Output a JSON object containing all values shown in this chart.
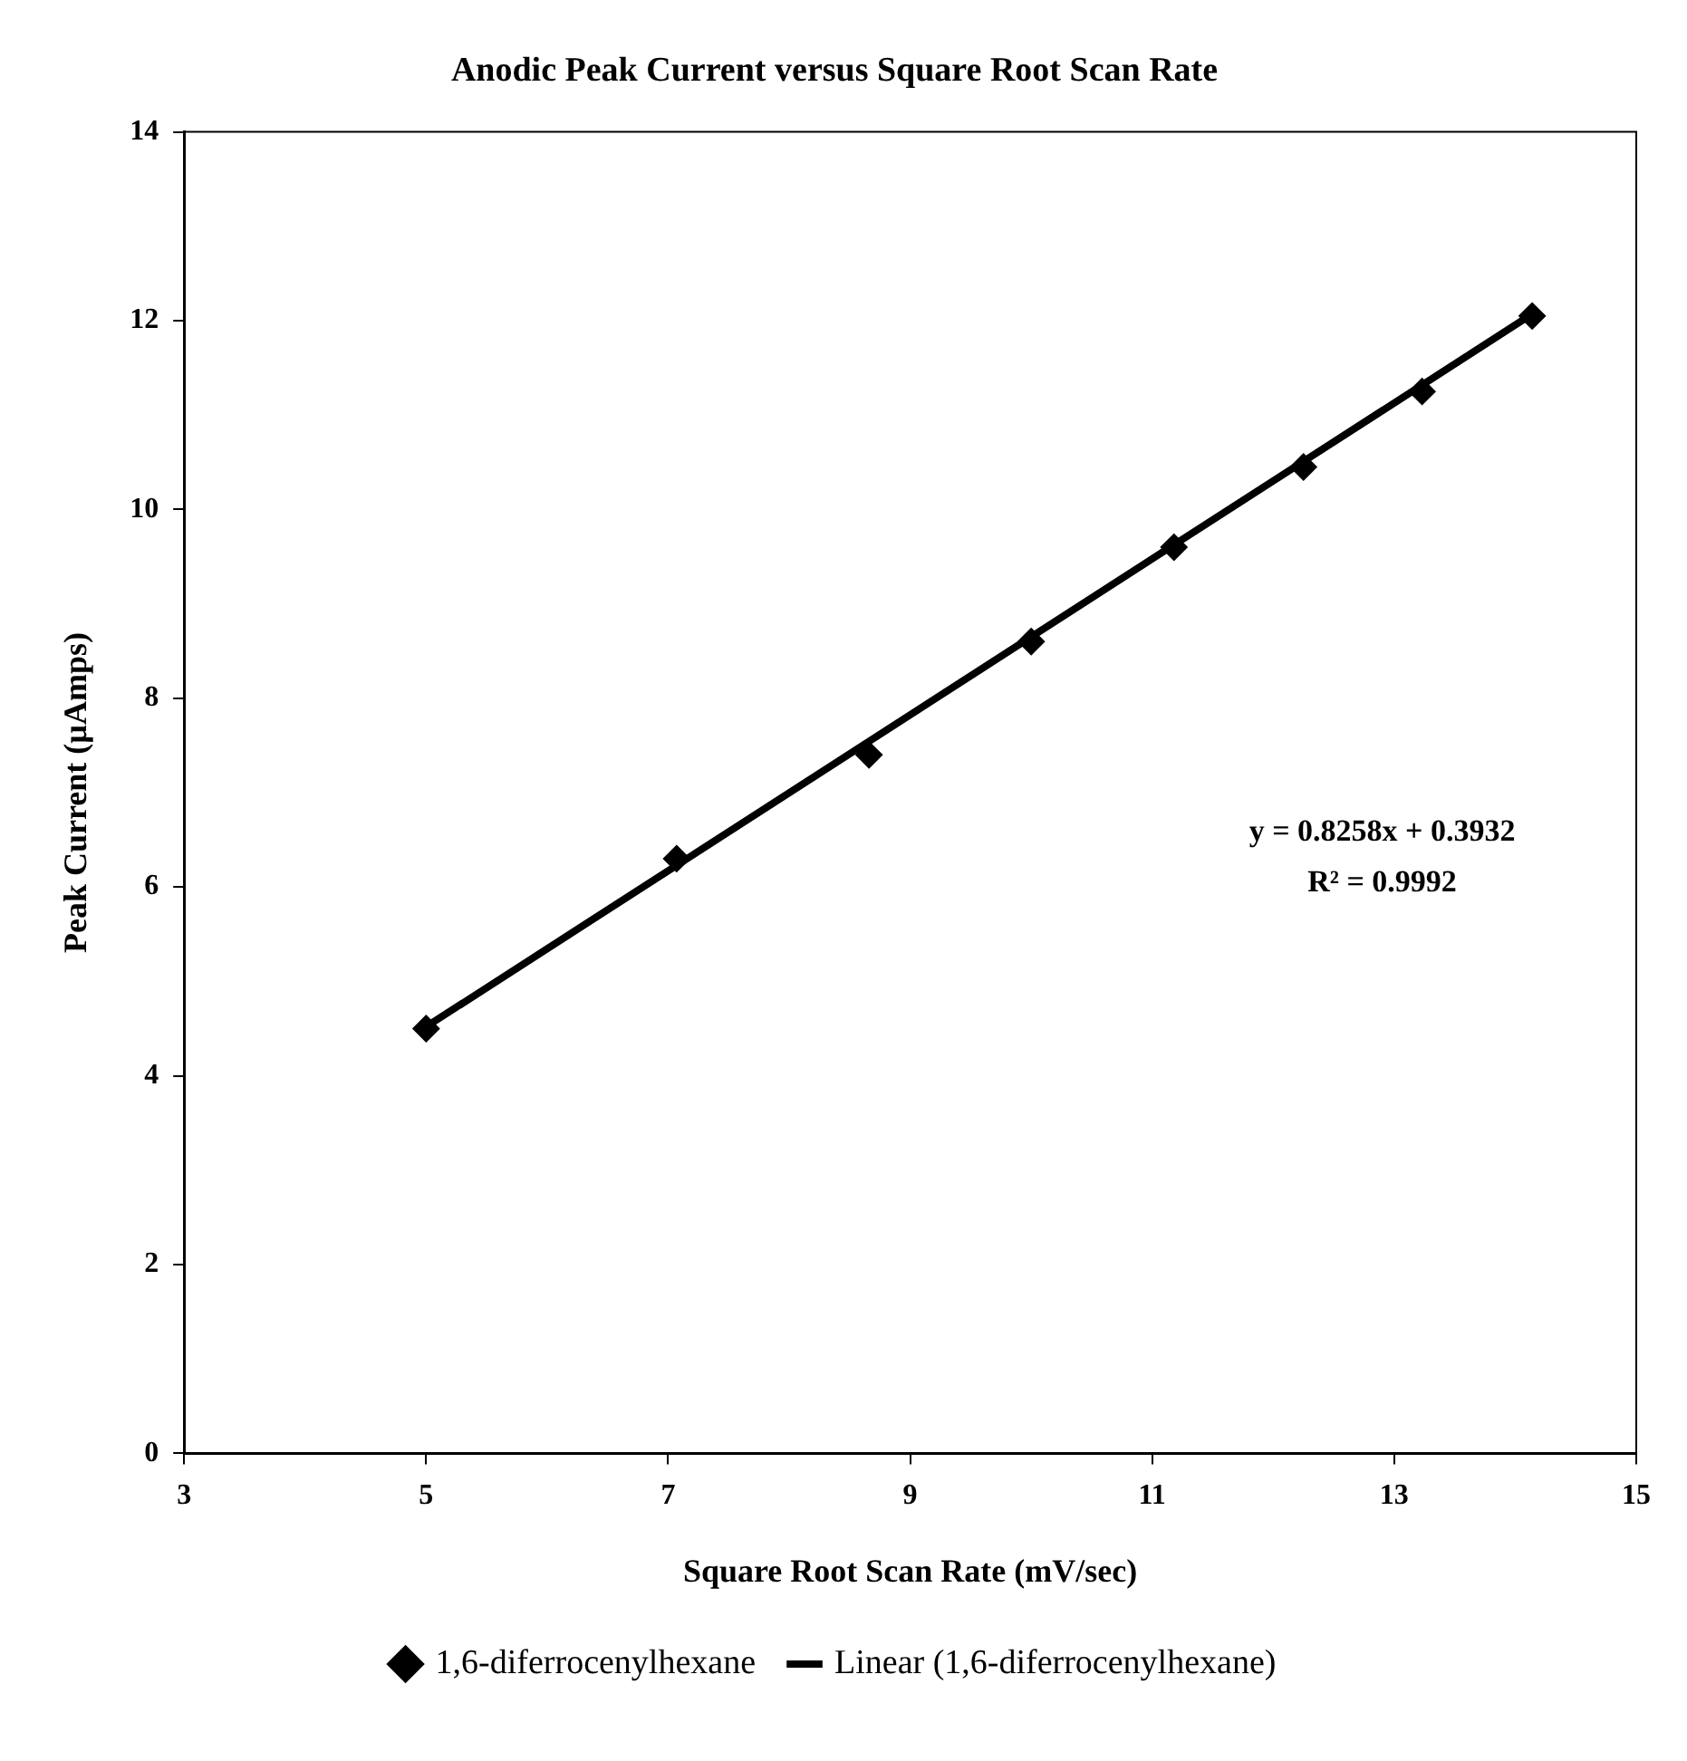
{
  "chart_data": {
    "type": "scatter",
    "title": "Anodic Peak Current versus Square Root Scan Rate",
    "xlabel": "Square Root Scan Rate (mV/sec)",
    "ylabel": "Peak Current (µAmps)",
    "series": [
      {
        "name": "1,6-diferrocenylhexane",
        "type": "scatter",
        "color": "#000000",
        "marker": "diamond",
        "x": [
          5,
          7.07,
          8.66,
          10,
          11.18,
          12.25,
          13.23,
          14.14
        ],
        "values": [
          4.5,
          6.3,
          7.4,
          8.6,
          9.6,
          10.45,
          11.25,
          12.05
        ]
      },
      {
        "name": "Linear (1,6-diferrocenylhexane)",
        "type": "line",
        "color": "#000000",
        "marker": "none",
        "line_style": "solid",
        "x": [
          5,
          14.14
        ],
        "values": [
          4.52,
          12.07
        ]
      }
    ],
    "xlim": [
      3,
      15
    ],
    "xticks": [
      3,
      5,
      7,
      9,
      11,
      13,
      15
    ],
    "ylim": [
      0,
      14
    ],
    "yticks": [
      0,
      2,
      4,
      6,
      8,
      10,
      12,
      14
    ],
    "grid": false,
    "legend": "bottom",
    "annotations": [
      "y = 0.8258x + 0.3932",
      "R² = 0.9992"
    ]
  }
}
